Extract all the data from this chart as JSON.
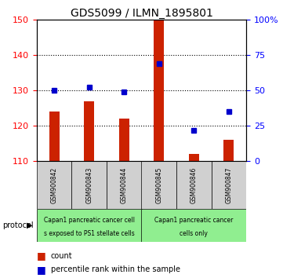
{
  "title": "GDS5099 / ILMN_1895801",
  "samples": [
    "GSM900842",
    "GSM900843",
    "GSM900844",
    "GSM900845",
    "GSM900846",
    "GSM900847"
  ],
  "counts": [
    124,
    127,
    122,
    150,
    112,
    116
  ],
  "percentiles": [
    50,
    52,
    49,
    69,
    22,
    35
  ],
  "ylim_left": [
    110,
    150
  ],
  "ylim_right": [
    0,
    100
  ],
  "yticks_left": [
    110,
    120,
    130,
    140,
    150
  ],
  "yticks_right": [
    0,
    25,
    50,
    75,
    100
  ],
  "bar_color": "#cc2200",
  "dot_color": "#0000cc",
  "bar_width": 0.3,
  "group1_label_line1": "Capan1 pancreatic cancer cell",
  "group1_label_line2": "s exposed to PS1 stellate cells",
  "group2_label_line1": "Capan1 pancreatic cancer",
  "group2_label_line2": "cells only",
  "green_color": "#90ee90",
  "gray_color": "#d0d0d0",
  "protocol_label": "protocol",
  "legend_count_label": "count",
  "legend_pct_label": "percentile rank within the sample",
  "title_fontsize": 10,
  "tick_fontsize": 8,
  "sample_fontsize": 5.5,
  "proto_fontsize": 5.5,
  "legend_fontsize": 8
}
